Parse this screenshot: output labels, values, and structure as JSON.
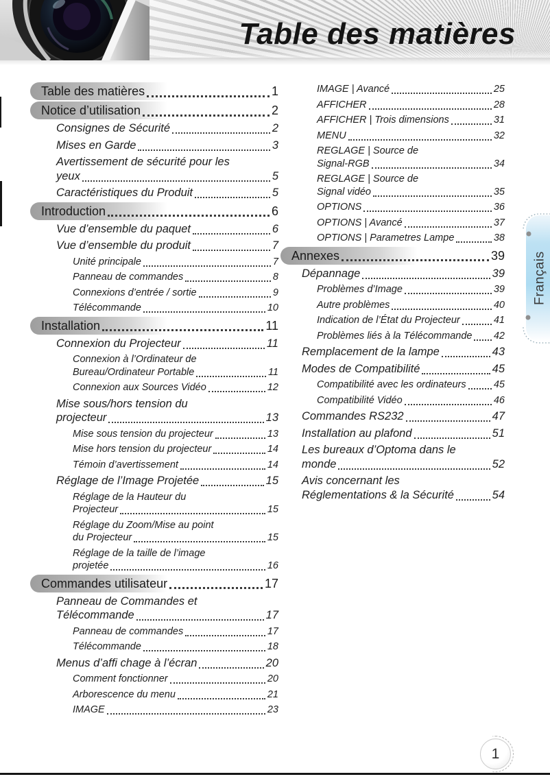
{
  "header": {
    "title": "Table des matières"
  },
  "side_tab": {
    "label": "Français"
  },
  "footer": {
    "page_number": "1"
  },
  "colors": {
    "tab_blue": "#aedcf2",
    "pill_gray": "#a3a3a3",
    "rule_dark": "#151515"
  },
  "toc": {
    "left_column": [
      {
        "level": 1,
        "pill": true,
        "label": "Table des matières",
        "page": "1"
      },
      {
        "level": 1,
        "pill": true,
        "label": "Notice d’utilisation",
        "page": "2"
      },
      {
        "level": 2,
        "label": "Consignes de Sécurité",
        "page": "2"
      },
      {
        "level": 2,
        "label": "Mises en Garde",
        "page": "3"
      },
      {
        "level": 2,
        "label": "Avertissement de sécurité pour les",
        "label2": "yeux",
        "page": "5"
      },
      {
        "level": 2,
        "label": "Caractéristiques du Produit",
        "page": "5"
      },
      {
        "level": 1,
        "pill": true,
        "label": "Introduction",
        "page": "6"
      },
      {
        "level": 2,
        "label": "Vue d’ensemble du paquet",
        "page": "6"
      },
      {
        "level": 2,
        "label": "Vue d’ensemble du produit",
        "page": "7"
      },
      {
        "level": 3,
        "label": "Unité principale",
        "page": "7"
      },
      {
        "level": 3,
        "label": "Panneau de commandes",
        "page": "8"
      },
      {
        "level": 3,
        "label": "Connexions d’entrée / sortie",
        "page": "9"
      },
      {
        "level": 3,
        "label": "Télécommande",
        "page": "10"
      },
      {
        "level": 1,
        "pill": true,
        "label": "Installation",
        "page": "11"
      },
      {
        "level": 2,
        "label": "Connexion du Projecteur",
        "page": "11"
      },
      {
        "level": 3,
        "label": "Connexion à l’Ordinateur de",
        "label2": "Bureau/Ordinateur Portable",
        "page": "11"
      },
      {
        "level": 3,
        "label": "Connexion aux Sources Vidéo",
        "page": "12"
      },
      {
        "level": 2,
        "label": "Mise sous/hors tension du",
        "label2": "projecteur",
        "page": "13"
      },
      {
        "level": 3,
        "label": "Mise sous tension du projecteur",
        "page": "13"
      },
      {
        "level": 3,
        "label": "Mise hors tension du projecteur",
        "page": "14"
      },
      {
        "level": 3,
        "label": "Témoin d’avertissement",
        "page": "14"
      },
      {
        "level": 2,
        "label": "Réglage de l’Image Projetée",
        "page": "15"
      },
      {
        "level": 3,
        "label": "Réglage de la Hauteur du",
        "label2": "Projecteur",
        "page": "15"
      },
      {
        "level": 3,
        "label": "Réglage du Zoom/Mise au point",
        "label2": "du Projecteur",
        "page": "15"
      },
      {
        "level": 3,
        "label": "Réglage de la taille de l’image",
        "label2": "projetée",
        "page": "16"
      },
      {
        "level": 1,
        "pill": true,
        "label": "Commandes utilisateur",
        "page": "17"
      },
      {
        "level": 2,
        "label": "Panneau de Commandes et",
        "label2": "Télécommande",
        "page": "17"
      },
      {
        "level": 3,
        "label": "Panneau de commandes",
        "page": "17"
      },
      {
        "level": 3,
        "label": "Télécommande",
        "page": "18"
      },
      {
        "level": 2,
        "label": "Menus d’affi chage à l’écran",
        "page": "20"
      },
      {
        "level": 3,
        "label": "Comment fonctionner",
        "page": "20"
      },
      {
        "level": 3,
        "label": "Arborescence du menu",
        "page": "21"
      },
      {
        "level": 3,
        "label": "IMAGE",
        "page": "23"
      }
    ],
    "right_column": [
      {
        "level": 3,
        "label": "IMAGE | Avancé",
        "page": "25"
      },
      {
        "level": 3,
        "label": "AFFICHER",
        "page": "28"
      },
      {
        "level": 3,
        "label": "AFFICHER | Trois dimensions",
        "page": "31"
      },
      {
        "level": 3,
        "label": "MENU",
        "page": "32"
      },
      {
        "level": 3,
        "label": "REGLAGE | Source de",
        "label2": "Signal-RGB",
        "page": "34"
      },
      {
        "level": 3,
        "label": "REGLAGE | Source de",
        "label2": "Signal vidéo",
        "page": "35"
      },
      {
        "level": 3,
        "label": "OPTIONS",
        "page": "36"
      },
      {
        "level": 3,
        "label": "OPTIONS | Avancé",
        "page": "37"
      },
      {
        "level": 3,
        "label": "OPTIONS | Parametres Lampe",
        "page": "38"
      },
      {
        "level": 1,
        "pill": true,
        "label": "Annexes",
        "page": "39"
      },
      {
        "level": 2,
        "label": "Dépannage",
        "page": "39"
      },
      {
        "level": 3,
        "label": "Problèmes d’Image",
        "page": "39"
      },
      {
        "level": 3,
        "label": "Autre problèmes",
        "page": "40"
      },
      {
        "level": 3,
        "label": "Indication de l’État du Projecteur",
        "page": "41"
      },
      {
        "level": 3,
        "label": "Problèmes liés à la Télécommande",
        "page": "42"
      },
      {
        "level": 2,
        "label": "Remplacement de la lampe",
        "page": "43"
      },
      {
        "level": 2,
        "label": "Modes de Compatibilité",
        "page": "45"
      },
      {
        "level": 3,
        "label": "Compatibilité avec les ordinateurs",
        "page": "45"
      },
      {
        "level": 3,
        "label": "Compatibilité Vidéo",
        "page": "46"
      },
      {
        "level": 2,
        "label": "Commandes RS232",
        "page": "47"
      },
      {
        "level": 2,
        "label": "Installation au plafond",
        "page": "51"
      },
      {
        "level": 2,
        "label": "Les bureaux d’Optoma dans le",
        "label2": "monde",
        "page": "52"
      },
      {
        "level": 2,
        "label": "Avis concernant les",
        "label2": "Réglementations & la Sécurité",
        "page": "54"
      }
    ]
  }
}
